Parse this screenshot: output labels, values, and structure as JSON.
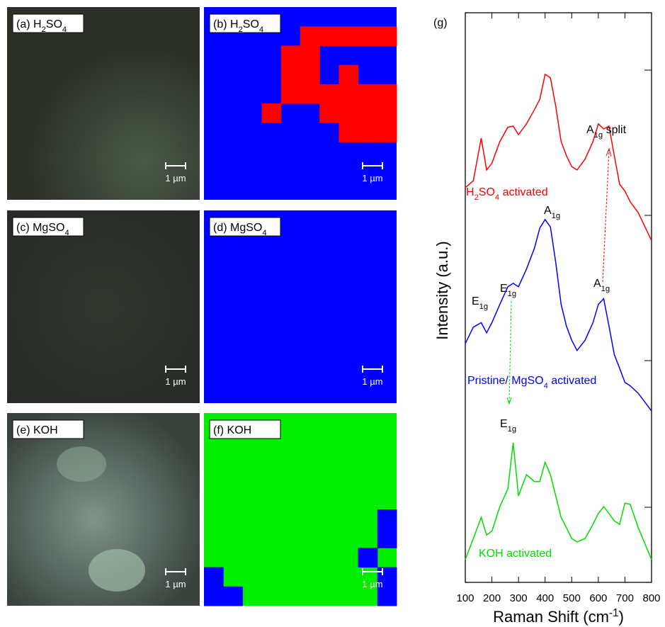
{
  "panels": [
    {
      "label": [
        {
          "text": "(a) H"
        },
        {
          "sub": "2"
        },
        {
          "text": "SO"
        },
        {
          "sub": "4"
        }
      ],
      "scale_bar": "1 µm"
    },
    {
      "label": [
        {
          "text": "(b) H"
        },
        {
          "sub": "2"
        },
        {
          "text": "SO"
        },
        {
          "sub": "4"
        }
      ],
      "scale_bar": "1 µm"
    },
    {
      "label": [
        {
          "text": "(c) MgSO"
        },
        {
          "sub": "4"
        }
      ],
      "scale_bar": "1 µm"
    },
    {
      "label": [
        {
          "text": "(d) MgSO"
        },
        {
          "sub": "4"
        }
      ],
      "scale_bar": "1 µm"
    },
    {
      "label": [
        {
          "text": "(e) KOH"
        }
      ],
      "scale_bar": "1 µm"
    },
    {
      "label": [
        {
          "text": "(f) KOH"
        }
      ],
      "scale_bar": "1 µm"
    }
  ],
  "chart_data": {
    "type": "line",
    "xlabel": [
      {
        "text": "Raman Shift (cm"
      },
      {
        "sup": "-1"
      },
      {
        "text": ")"
      }
    ],
    "ylabel": [
      {
        "text": "Intensity (a.u.)"
      }
    ],
    "annotations": [
      {
        "parts": [
          {
            "text": "(g)"
          }
        ],
        "color": "#000000"
      },
      {
        "parts": [
          {
            "text": "H"
          },
          {
            "sub": "2"
          },
          {
            "text": "SO"
          },
          {
            "sub": "4"
          },
          {
            "text": " activated"
          }
        ],
        "color": "#ff0000"
      },
      {
        "parts": [
          {
            "text": "A"
          },
          {
            "sub": "1g"
          },
          {
            "text": " split"
          }
        ],
        "color": "#000000"
      },
      {
        "parts": [
          {
            "text": "A"
          },
          {
            "sub": "1g"
          }
        ],
        "color": "#000000"
      },
      {
        "parts": [
          {
            "text": "E"
          },
          {
            "sub": "1g"
          }
        ],
        "color": "#000000"
      },
      {
        "parts": [
          {
            "text": "E"
          },
          {
            "sub": "1g"
          }
        ],
        "color": "#000000"
      },
      {
        "parts": [
          {
            "text": "A"
          },
          {
            "sub": "1g"
          }
        ],
        "color": "#000000"
      },
      {
        "parts": [
          {
            "text": "Pristine/ MgSO"
          },
          {
            "sub": "4"
          },
          {
            "text": " activated"
          }
        ],
        "color": "#0000ff"
      },
      {
        "parts": [
          {
            "text": "E"
          },
          {
            "sub": "1g"
          }
        ],
        "color": "#000000"
      },
      {
        "parts": [
          {
            "text": "KOH activated"
          }
        ],
        "color": "#00dd00"
      }
    ],
    "x": [
      100,
      130,
      160,
      180,
      200,
      230,
      260,
      280,
      300,
      330,
      360,
      380,
      400,
      420,
      440,
      460,
      480,
      500,
      520,
      550,
      580,
      600,
      620,
      640,
      660,
      680,
      700,
      720,
      750,
      800
    ],
    "series": [
      {
        "color": "#ff0000",
        "values": [
          69.3,
          70.5,
          78.0,
          72.4,
          73.6,
          77.4,
          79.9,
          80.1,
          78.6,
          80.5,
          83.0,
          84.8,
          89.2,
          88.6,
          83.6,
          77.4,
          74.9,
          73.0,
          72.4,
          74.3,
          77.4,
          80.5,
          79.6,
          80.1,
          74.9,
          69.9,
          68.7,
          66.8,
          64.9,
          60.0
        ]
      },
      {
        "color": "#0000ff",
        "values": [
          41.9,
          44.8,
          45.6,
          43.8,
          45.6,
          48.8,
          51.9,
          52.5,
          51.9,
          55.0,
          58.7,
          62.2,
          63.7,
          62.4,
          56.2,
          48.8,
          45.0,
          42.5,
          40.7,
          42.5,
          45.6,
          48.8,
          49.8,
          45.0,
          40.0,
          37.6,
          35.1,
          34.5,
          33.2,
          30.1
        ]
      },
      {
        "color": "#00dd00",
        "values": [
          4.0,
          7.7,
          11.4,
          8.3,
          9.0,
          13.3,
          16.4,
          24.5,
          15.2,
          18.9,
          17.7,
          17.7,
          21.1,
          18.9,
          15.2,
          11.4,
          9.6,
          7.7,
          7.1,
          7.7,
          10.2,
          12.1,
          13.3,
          12.1,
          10.8,
          10.2,
          13.9,
          13.7,
          9.6,
          4.0
        ]
      }
    ],
    "xlim": [
      100,
      800
    ],
    "xticks": [
      100,
      200,
      300,
      400,
      500,
      600,
      700,
      800
    ],
    "ylim": [
      0,
      100
    ]
  }
}
